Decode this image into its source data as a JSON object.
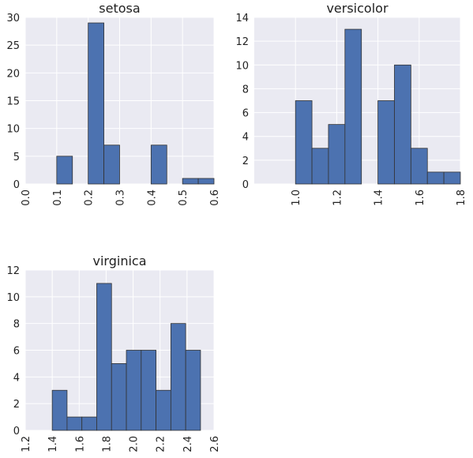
{
  "chart_data": [
    {
      "type": "histogram",
      "title": "setosa",
      "bins": [
        0.1,
        0.15,
        0.2,
        0.25,
        0.3,
        0.35,
        0.4,
        0.45,
        0.5,
        0.55,
        0.6
      ],
      "values": [
        5,
        0,
        29,
        7,
        0,
        0,
        7,
        0,
        1,
        1
      ],
      "color": "#4c72b0",
      "xlim": [
        0,
        0.6
      ],
      "ylim": [
        0,
        30
      ],
      "xticks": [
        {
          "value": 0,
          "label": "0.0"
        },
        0.1,
        0.2,
        0.3,
        0.4,
        0.5,
        0.6
      ],
      "yticks": [
        0,
        5,
        10,
        15,
        20,
        25,
        30
      ],
      "grid": true
    },
    {
      "type": "histogram",
      "title": "versicolor",
      "bins": [
        1.0,
        1.08,
        1.16,
        1.24,
        1.32,
        1.4,
        1.48,
        1.56,
        1.64,
        1.72,
        1.8
      ],
      "values": [
        7,
        3,
        5,
        13,
        0,
        7,
        10,
        3,
        1,
        1
      ],
      "color": "#4c72b0",
      "xlim": [
        0.8,
        1.8
      ],
      "ylim": [
        0,
        14
      ],
      "xticks": [
        {
          "value": 1,
          "label": "1.0"
        },
        1.2,
        1.4,
        1.6,
        1.8
      ],
      "yticks": [
        0,
        2,
        4,
        6,
        8,
        10,
        12,
        14
      ],
      "grid": true
    },
    {
      "type": "histogram",
      "title": "virginica",
      "bins": [
        1.4,
        1.51,
        1.62,
        1.73,
        1.84,
        1.95,
        2.06,
        2.17,
        2.28,
        2.39,
        2.5
      ],
      "values": [
        3,
        1,
        1,
        11,
        5,
        6,
        6,
        3,
        8,
        6
      ],
      "color": "#4c72b0",
      "xlim": [
        1.2,
        2.6
      ],
      "ylim": [
        0,
        12
      ],
      "xticks": [
        1.2,
        1.4,
        1.6,
        1.8,
        {
          "value": 2,
          "label": "2.0"
        },
        2.2,
        2.4,
        2.6
      ],
      "yticks": [
        0,
        2,
        4,
        6,
        8,
        10,
        12
      ],
      "grid": true
    }
  ]
}
